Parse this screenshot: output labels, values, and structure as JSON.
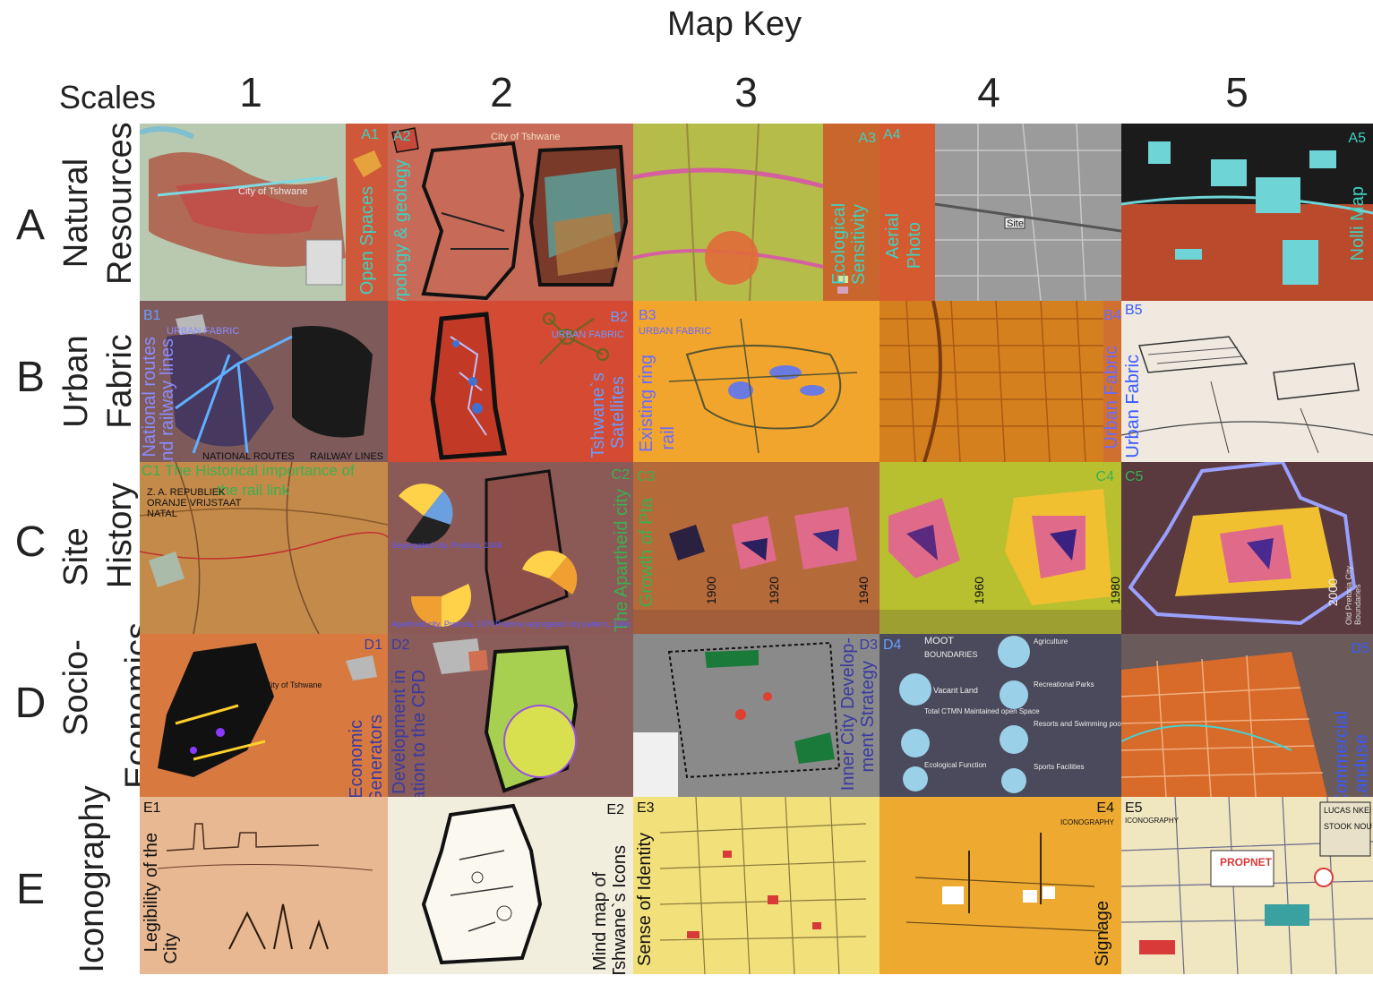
{
  "title": "Map Key",
  "scales_label": "Scales",
  "columns": [
    "1",
    "2",
    "3",
    "4",
    "5"
  ],
  "rows": [
    {
      "letter": "A",
      "name_line1": "Natural",
      "name_line2": "Resources"
    },
    {
      "letter": "B",
      "name_line1": "Urban",
      "name_line2": "Fabric"
    },
    {
      "letter": "C",
      "name_line1": "Site",
      "name_line2": "History"
    },
    {
      "letter": "D",
      "name_line1": "Socio-",
      "name_line2": "Economics"
    },
    {
      "letter": "E",
      "name_line1": "Iconography",
      "name_line2": ""
    }
  ],
  "tiles": {
    "A1": {
      "code": "A1",
      "label": "Open Spaces",
      "small1": "City of Tshwane"
    },
    "A2": {
      "code": "A2",
      "label": "Typology & geology",
      "small1": "City of Tshwane"
    },
    "A3": {
      "code": "A3",
      "label": "Ecological Sensitivity"
    },
    "A4": {
      "code": "A4",
      "label_line1": "Aerial",
      "label_line2": "Photo",
      "small1": "Site"
    },
    "A5": {
      "code": "A5",
      "label": "Nolli Map"
    },
    "B1": {
      "code": "B1",
      "label_line1": "National routes",
      "label_line2": "and railway lines",
      "small1": "URBAN FABRIC",
      "small2": "NATIONAL ROUTES",
      "small3": "RAILWAY LINES"
    },
    "B2": {
      "code": "B2",
      "label_line1": "Tshwane`s",
      "label_line2": "Satellites",
      "small1": "URBAN FABRIC"
    },
    "B3": {
      "code": "B3",
      "label_line1": "Existing ring",
      "label_line2": "rail",
      "small1": "URBAN FABRIC"
    },
    "B4": {
      "code": "B4",
      "label": "Urban Fabric"
    },
    "B5": {
      "code": "B5",
      "label": "Urban Fabric"
    },
    "C1": {
      "code": "C1",
      "label_line1": "C1 The Historical importance of",
      "label_line2": "the rail link",
      "small1": "Z. A. REPUBLIEK",
      "small2": "ORANJE VRIJSTAAT",
      "small3": "NATAL"
    },
    "C2": {
      "code": "C2",
      "label": "The Apartheid city",
      "small1": "Segregated city, Pretoria, 1948",
      "small2": "Apartheid city, Pretoria, 1970",
      "small3": "Pretoria segregated city pattern, 1984"
    },
    "C3": {
      "code": "C3",
      "label": "Growth of Pta",
      "years": [
        "1900",
        "1920",
        "1940"
      ]
    },
    "C4": {
      "code": "C4",
      "years": [
        "1960",
        "1980"
      ]
    },
    "C5": {
      "code": "C5",
      "years": [
        "2000"
      ],
      "small1": "Old Pretoria City Boundaries"
    },
    "D1": {
      "code": "D1",
      "label_line1": "Economic",
      "label_line2": "Generators",
      "small1": "City of Tshwane"
    },
    "D2": {
      "code": "D2",
      "label_line1": "Development in",
      "label_line2": "relation to the CPD"
    },
    "D3": {
      "code": "D3",
      "label_line1": "Inner City Develop-",
      "label_line2": "ment Strategy"
    },
    "D4": {
      "code": "D4",
      "heads": [
        "MOOT",
        "BOUNDARIES",
        "Vacant Land",
        "Total CTMN Maintained open Space",
        "Ecological Function",
        "Agriculture",
        "Recreational Parks",
        "Resorts and Swimming pool",
        "Sports Facilities"
      ]
    },
    "D5": {
      "code": "D5",
      "label_line1": "Commercial",
      "label_line2": "Landuse"
    },
    "E1": {
      "code": "E1",
      "label_line1": "Legibility of the",
      "label_line2": "City"
    },
    "E2": {
      "code": "E2",
      "label_line1": "Mind map of",
      "label_line2": "Tshwane`s Icons"
    },
    "E3": {
      "code": "E3",
      "label": "Sense of Identity"
    },
    "E4": {
      "code": "E4",
      "label": "Signage",
      "small1": "ICONOGRAPHY"
    },
    "E5": {
      "code": "E5",
      "small1": "ICONOGRAPHY",
      "small2": "LUCAS NKEI",
      "small3": "STOOK NOU",
      "small4": "PROPNET"
    }
  }
}
